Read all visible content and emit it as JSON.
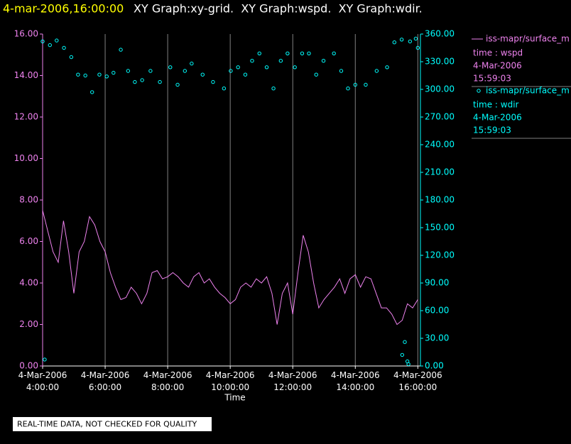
{
  "chart_data": {
    "type": "xy-time",
    "title": "4-mar-2006,16:00:00",
    "subtitle": "XY Graph:xy-grid.  XY Graph:wspd.  XY Graph:wdir.",
    "x_label": "Time",
    "footer": "REAL-TIME DATA, NOT CHECKED FOR QUALITY",
    "grid": "vertical",
    "legend_position": "right",
    "xlim": [
      "4:00",
      "16:05"
    ],
    "xticks": [
      {
        "value": "4:00",
        "label": "4-Mar-2006 4:00:00"
      },
      {
        "value": "6:00",
        "label": "4-Mar-2006 6:00:00"
      },
      {
        "value": "8:00",
        "label": "4-Mar-2006 8:00:00"
      },
      {
        "value": "10:00",
        "label": "4-Mar-2006 10:00:00"
      },
      {
        "value": "12:00",
        "label": "4-Mar-2006 12:00:00"
      },
      {
        "value": "14:00",
        "label": "4-Mar-2006 14:00:00"
      },
      {
        "value": "16:00",
        "label": "4-Mar-2006 16:00:00"
      }
    ],
    "ylim": [
      0,
      16
    ],
    "yticks": [
      {
        "value": 0,
        "label": "0.00"
      },
      {
        "value": 2,
        "label": "2.00"
      },
      {
        "value": 4,
        "label": "4.00"
      },
      {
        "value": 6,
        "label": "6.00"
      },
      {
        "value": 8,
        "label": "8.00"
      },
      {
        "value": 10,
        "label": "10.00"
      },
      {
        "value": 12,
        "label": "12.00"
      },
      {
        "value": 14,
        "label": "14.00"
      },
      {
        "value": 16,
        "label": "16.00"
      }
    ],
    "y2lim": [
      0,
      360
    ],
    "y2ticks": [
      {
        "value": 0,
        "label": "0.00"
      },
      {
        "value": 30,
        "label": "30.00"
      },
      {
        "value": 60,
        "label": "60.00"
      },
      {
        "value": 90,
        "label": "90.00"
      },
      {
        "value": 120,
        "label": "120.00"
      },
      {
        "value": 150,
        "label": "150.00"
      },
      {
        "value": 180,
        "label": "180.00"
      },
      {
        "value": 210,
        "label": "210.00"
      },
      {
        "value": 240,
        "label": "240.00"
      },
      {
        "value": 270,
        "label": "270.00"
      },
      {
        "value": 300,
        "label": "300.00"
      },
      {
        "value": 330,
        "label": "330.00"
      },
      {
        "value": 360,
        "label": "360.00"
      }
    ],
    "series": [
      {
        "name": "iss-mapr/surface_m",
        "mark": "line",
        "color": "#ee82ee",
        "axis": "y",
        "legend_lines": [
          "time : wspd",
          "4-Mar-2006",
          "15:59:03"
        ],
        "x": [
          "4:00",
          "4:10",
          "4:20",
          "4:30",
          "4:40",
          "4:50",
          "5:00",
          "5:10",
          "5:20",
          "5:30",
          "5:40",
          "5:50",
          "6:00",
          "6:10",
          "6:20",
          "6:30",
          "6:40",
          "6:50",
          "7:00",
          "7:10",
          "7:20",
          "7:30",
          "7:40",
          "7:50",
          "8:00",
          "8:10",
          "8:20",
          "8:30",
          "8:40",
          "8:50",
          "9:00",
          "9:10",
          "9:20",
          "9:30",
          "9:40",
          "9:50",
          "10:00",
          "10:10",
          "10:20",
          "10:30",
          "10:40",
          "10:50",
          "11:00",
          "11:10",
          "11:20",
          "11:30",
          "11:40",
          "11:50",
          "12:00",
          "12:10",
          "12:20",
          "12:30",
          "12:40",
          "12:50",
          "13:00",
          "13:10",
          "13:20",
          "13:30",
          "13:40",
          "13:50",
          "14:00",
          "14:10",
          "14:20",
          "14:30",
          "14:40",
          "14:50",
          "15:00",
          "15:10",
          "15:20",
          "15:30",
          "15:40",
          "15:50",
          "16:00"
        ],
        "values": [
          7.5,
          6.5,
          5.5,
          5.0,
          7.0,
          5.5,
          3.5,
          5.5,
          6.0,
          7.2,
          6.8,
          6.0,
          5.5,
          4.5,
          3.8,
          3.2,
          3.3,
          3.8,
          3.5,
          3.0,
          3.5,
          4.5,
          4.6,
          4.2,
          4.3,
          4.5,
          4.3,
          4.0,
          3.8,
          4.3,
          4.5,
          4.0,
          4.2,
          3.8,
          3.5,
          3.3,
          3.0,
          3.2,
          3.8,
          4.0,
          3.8,
          4.2,
          4.0,
          4.3,
          3.5,
          2.0,
          3.5,
          4.0,
          2.5,
          4.5,
          6.3,
          5.5,
          4.0,
          2.8,
          3.2,
          3.5,
          3.8,
          4.2,
          3.5,
          4.2,
          4.4,
          3.8,
          4.3,
          4.2,
          3.5,
          2.8,
          2.8,
          2.5,
          2.0,
          2.2,
          3.0,
          2.8,
          3.2
        ]
      },
      {
        "name": "iss-mapr/surface_m",
        "mark": "circle",
        "color": "#00ffff",
        "axis": "y2",
        "legend_lines": [
          "time : wdir",
          "4-Mar-2006",
          "15:59:03"
        ],
        "x": [
          "4:00",
          "4:04",
          "4:14",
          "4:27",
          "4:41",
          "4:55",
          "5:08",
          "5:22",
          "5:35",
          "5:49",
          "6:03",
          "6:16",
          "6:30",
          "6:44",
          "6:57",
          "7:11",
          "7:27",
          "7:45",
          "8:05",
          "8:19",
          "8:33",
          "8:46",
          "9:07",
          "9:27",
          "9:48",
          "10:01",
          "10:15",
          "10:29",
          "10:42",
          "10:56",
          "11:10",
          "11:23",
          "11:37",
          "11:50",
          "12:04",
          "12:18",
          "12:31",
          "12:45",
          "12:59",
          "13:19",
          "13:33",
          "13:46",
          "14:00",
          "14:20",
          "14:41",
          "15:01",
          "15:15",
          "15:29",
          "15:30",
          "15:35",
          "15:40",
          "15:42",
          "15:45",
          "15:56",
          "16:00"
        ],
        "values": [
          352,
          7,
          348,
          353,
          345,
          335,
          316,
          315,
          297,
          316,
          314,
          318,
          343,
          320,
          308,
          310,
          320,
          308,
          324,
          305,
          320,
          328,
          316,
          308,
          301,
          320,
          324,
          316,
          331,
          339,
          324,
          301,
          331,
          339,
          324,
          339,
          339,
          316,
          331,
          339,
          320,
          301,
          305,
          305,
          320,
          324,
          351,
          354,
          12,
          26,
          5,
          2,
          352,
          355,
          345
        ]
      }
    ]
  }
}
